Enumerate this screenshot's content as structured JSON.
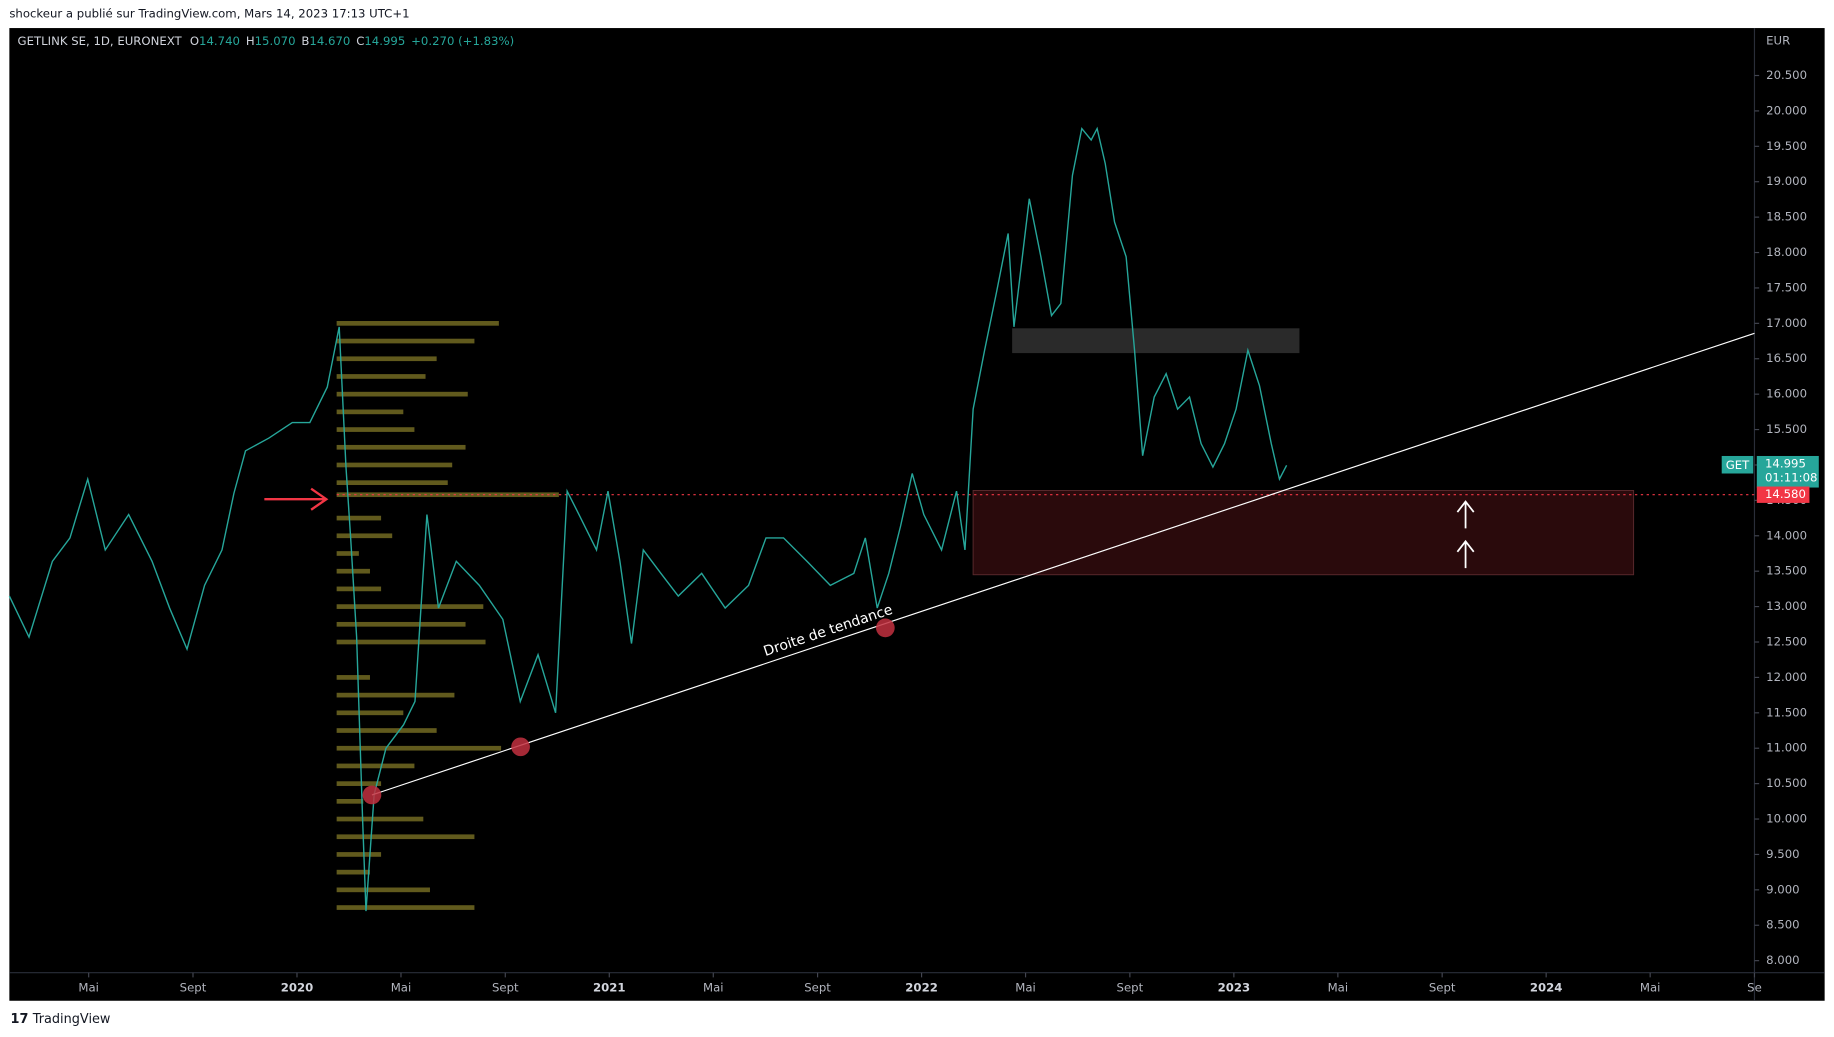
{
  "header": {
    "attribution": "shockeur a publié sur TradingView.com, Mars 14, 2023 17:13 UTC+1",
    "footer": "TradingView"
  },
  "chart_data": {
    "type": "line",
    "currency": "EUR",
    "ohlc_labels": [
      "O",
      "H",
      "B",
      "C"
    ],
    "ohlc_values": [
      "14.740",
      "15.070",
      "14.670",
      "14.995"
    ],
    "change": "+0.270 (+1.83%)",
    "xlim": [
      2019.079,
      2024.667
    ],
    "ylim": [
      7.83,
      21.17
    ],
    "xticks": [
      {
        "value": 2019.333,
        "label": "Mai"
      },
      {
        "value": 2019.667,
        "label": "Sept"
      },
      2020,
      {
        "value": 2020.333,
        "label": "Mai"
      },
      {
        "value": 2020.667,
        "label": "Sept"
      },
      2021,
      {
        "value": 2021.333,
        "label": "Mai"
      },
      {
        "value": 2021.667,
        "label": "Sept"
      },
      2022,
      {
        "value": 2022.333,
        "label": "Mai"
      },
      {
        "value": 2022.667,
        "label": "Sept"
      },
      2023,
      {
        "value": 2023.333,
        "label": "Mai"
      },
      {
        "value": 2023.667,
        "label": "Sept"
      },
      2024,
      {
        "value": 2024.333,
        "label": "Mai"
      },
      {
        "value": 2024.667,
        "label": "Se"
      }
    ],
    "yticks": [
      {
        "value": 8,
        "label": "8.000"
      },
      {
        "value": 8.5,
        "label": "8.500"
      },
      {
        "value": 9,
        "label": "9.000"
      },
      {
        "value": 9.5,
        "label": "9.500"
      },
      {
        "value": 10,
        "label": "10.000"
      },
      {
        "value": 10.5,
        "label": "10.500"
      },
      {
        "value": 11,
        "label": "11.000"
      },
      {
        "value": 11.5,
        "label": "11.500"
      },
      {
        "value": 12,
        "label": "12.000"
      },
      {
        "value": 12.5,
        "label": "12.500"
      },
      {
        "value": 13,
        "label": "13.000"
      },
      {
        "value": 13.5,
        "label": "13.500"
      },
      {
        "value": 14,
        "label": "14.000"
      },
      {
        "value": 14.5,
        "label": "14.500"
      },
      {
        "value": 15,
        "label": "15.000"
      },
      {
        "value": 15.5,
        "label": "15.500"
      },
      {
        "value": 16,
        "label": "16.000"
      },
      {
        "value": 16.5,
        "label": "16.500"
      },
      {
        "value": 17,
        "label": "17.000"
      },
      {
        "value": 17.5,
        "label": "17.500"
      },
      {
        "value": 18,
        "label": "18.000"
      },
      {
        "value": 18.5,
        "label": "18.500"
      },
      {
        "value": 19,
        "label": "19.000"
      },
      {
        "value": 19.5,
        "label": "19.500"
      },
      {
        "value": 20,
        "label": "20.000"
      },
      {
        "value": 20.5,
        "label": "20.500"
      }
    ],
    "series": [
      {
        "name": "GETLINK SE, 1D, EURONEXT",
        "color": "#26a69a",
        "x": [
          2019.079,
          2019.142,
          2019.217,
          2019.273,
          2019.33,
          2019.386,
          2019.461,
          2019.536,
          2019.592,
          2019.648,
          2019.704,
          2019.76,
          2019.798,
          2019.835,
          2019.91,
          2019.985,
          2020.041,
          2020.097,
          2020.135,
          2020.157,
          2020.172,
          2020.191,
          2020.21,
          2020.221,
          2020.247,
          2020.285,
          2020.341,
          2020.378,
          2020.416,
          2020.453,
          2020.51,
          2020.584,
          2020.659,
          2020.715,
          2020.772,
          2020.828,
          2020.865,
          2020.903,
          2020.959,
          2020.996,
          2021.034,
          2021.071,
          2021.109,
          2021.165,
          2021.221,
          2021.296,
          2021.371,
          2021.446,
          2021.502,
          2021.558,
          2021.633,
          2021.708,
          2021.783,
          2021.82,
          2021.858,
          2021.895,
          2021.933,
          2021.97,
          2022.007,
          2022.064,
          2022.112,
          2022.139,
          2022.165,
          2022.202,
          2022.24,
          2022.277,
          2022.296,
          2022.345,
          2022.382,
          2022.416,
          2022.446,
          2022.483,
          2022.513,
          2022.543,
          2022.562,
          2022.588,
          2022.618,
          2022.655,
          2022.682,
          2022.708,
          2022.745,
          2022.783,
          2022.82,
          2022.858,
          2022.895,
          2022.933,
          2022.97,
          2023.007,
          2023.045,
          2023.082,
          2023.12,
          2023.146,
          2023.169
        ],
        "values": [
          13.15,
          12.57,
          13.64,
          13.97,
          14.8,
          13.8,
          14.3,
          13.64,
          12.98,
          12.4,
          13.3,
          13.8,
          14.6,
          15.2,
          15.38,
          15.6,
          15.6,
          16.1,
          16.95,
          14.97,
          13.97,
          12.57,
          10.0,
          8.7,
          10.35,
          11.0,
          11.33,
          11.66,
          14.3,
          12.98,
          13.64,
          13.3,
          12.82,
          11.66,
          12.32,
          11.5,
          14.63,
          14.3,
          13.8,
          14.63,
          13.64,
          12.48,
          13.8,
          13.47,
          13.15,
          13.47,
          12.98,
          13.3,
          13.97,
          13.97,
          13.64,
          13.3,
          13.47,
          13.97,
          12.98,
          13.47,
          14.14,
          14.88,
          14.3,
          13.8,
          14.63,
          13.8,
          15.79,
          16.62,
          17.44,
          18.27,
          16.95,
          18.76,
          17.94,
          17.11,
          17.28,
          19.09,
          19.75,
          19.59,
          19.75,
          19.26,
          18.43,
          17.94,
          16.62,
          15.13,
          15.96,
          16.29,
          15.79,
          15.96,
          15.3,
          14.97,
          15.3,
          15.79,
          16.62,
          16.12,
          15.3,
          14.8,
          14.995
        ]
      }
    ],
    "volume_profile": {
      "anchor_x": 2020.127,
      "color": "#6b6420",
      "prices": [
        17.0,
        16.75,
        16.5,
        16.25,
        16.0,
        15.75,
        15.5,
        15.25,
        15.0,
        14.75,
        14.58,
        14.25,
        14.0,
        13.75,
        13.5,
        13.25,
        13.0,
        12.75,
        12.5,
        12.0,
        11.75,
        11.5,
        11.25,
        11.0,
        10.75,
        10.5,
        10.25,
        10.0,
        9.75,
        9.5,
        9.25,
        9.0,
        8.75
      ],
      "volumes": [
        73,
        62,
        45,
        40,
        59,
        30,
        35,
        58,
        52,
        50,
        100,
        20,
        25,
        10,
        15,
        20,
        66,
        58,
        67,
        15,
        53,
        30,
        45,
        74,
        35,
        20,
        12,
        39,
        62,
        20,
        15,
        42,
        62
      ]
    },
    "zones": [
      {
        "x": [
          2022.29,
          2023.21
        ],
        "y": [
          16.58,
          16.93
        ],
        "color": "#2a2a2a"
      },
      {
        "x": [
          2022.165,
          2024.28
        ],
        "y": [
          13.45,
          14.64
        ],
        "color": "#2a0a0c"
      }
    ],
    "trendline": {
      "label": "Droite de tendance",
      "x": [
        2020.24,
        2024.667
      ],
      "y": [
        10.34,
        16.86
      ],
      "touches_x": [
        2020.24,
        2020.716,
        2021.884
      ],
      "touches_y": [
        10.34,
        11.02,
        12.7
      ]
    },
    "level": {
      "value": 14.58,
      "label": "14.580",
      "color": "#f23645"
    },
    "price_tag": {
      "symbol": "GET",
      "value": 14.995,
      "label": "14.995",
      "countdown": "01:11:08",
      "color": "#26a69a"
    }
  }
}
